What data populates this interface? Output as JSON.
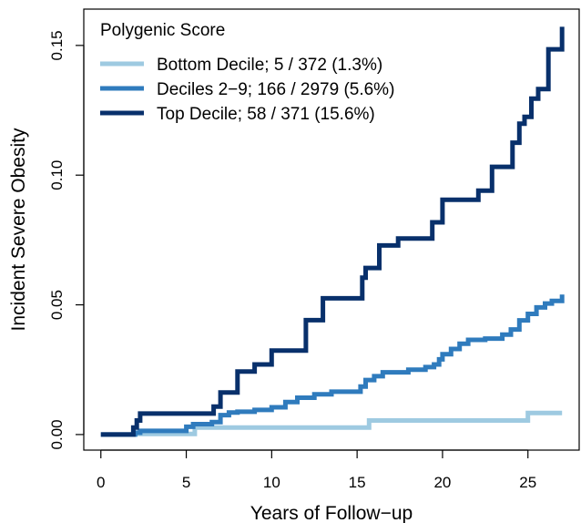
{
  "chart_data": {
    "type": "line",
    "xlabel": "Years of Follow−up",
    "ylabel": "Incident Severe Obesity",
    "xlim": [
      -1,
      28
    ],
    "ylim": [
      -0.006,
      0.164
    ],
    "x_ticks": [
      "0",
      "5",
      "10",
      "15",
      "20",
      "25"
    ],
    "y_ticks": [
      "0.00",
      "0.05",
      "0.10",
      "0.15"
    ],
    "legend": {
      "title": "Polygenic Score",
      "position": "top-left"
    },
    "series": [
      {
        "name": "Bottom Decile; 5 / 372 (1.3%)",
        "color": "#9ecae1",
        "points": [
          [
            0,
            0
          ],
          [
            2.0,
            0
          ],
          [
            2.0,
            0.0002
          ],
          [
            5.5,
            0.0002
          ],
          [
            5.5,
            0.0027
          ],
          [
            15.7,
            0.0027
          ],
          [
            15.7,
            0.0054
          ],
          [
            25.0,
            0.0054
          ],
          [
            25.0,
            0.0083
          ],
          [
            27.0,
            0.0083
          ]
        ]
      },
      {
        "name": "Deciles 2−9; 166 / 2979 (5.6%)",
        "color": "#2f7bbd",
        "points": [
          [
            0,
            0
          ],
          [
            1.9,
            0
          ],
          [
            2.0,
            0.0007
          ],
          [
            2.3,
            0.0014
          ],
          [
            4.6,
            0.0014
          ],
          [
            5.0,
            0.003
          ],
          [
            5.4,
            0.004
          ],
          [
            6.5,
            0.0048
          ],
          [
            7.0,
            0.0075
          ],
          [
            7.5,
            0.0085
          ],
          [
            8.0,
            0.0088
          ],
          [
            9.0,
            0.0095
          ],
          [
            10.0,
            0.0105
          ],
          [
            10.8,
            0.0125
          ],
          [
            11.5,
            0.0142
          ],
          [
            12.5,
            0.0155
          ],
          [
            13.5,
            0.0165
          ],
          [
            15.2,
            0.0185
          ],
          [
            15.5,
            0.021
          ],
          [
            16.0,
            0.0225
          ],
          [
            16.5,
            0.024
          ],
          [
            18.0,
            0.025
          ],
          [
            19.0,
            0.026
          ],
          [
            19.5,
            0.027
          ],
          [
            19.8,
            0.029
          ],
          [
            20.0,
            0.031
          ],
          [
            20.5,
            0.033
          ],
          [
            21.0,
            0.035
          ],
          [
            21.5,
            0.0365
          ],
          [
            22.5,
            0.037
          ],
          [
            23.5,
            0.0385
          ],
          [
            24.0,
            0.0405
          ],
          [
            24.5,
            0.044
          ],
          [
            25.0,
            0.0465
          ],
          [
            25.5,
            0.049
          ],
          [
            26.0,
            0.0505
          ],
          [
            26.4,
            0.0515
          ],
          [
            27.0,
            0.0515
          ],
          [
            27.0,
            0.054
          ]
        ]
      },
      {
        "name": "Top Decile; 58 / 371 (15.6%)",
        "color": "#08306b",
        "points": [
          [
            0,
            0
          ],
          [
            1.9,
            0
          ],
          [
            1.9,
            0.0027
          ],
          [
            2.1,
            0.0054
          ],
          [
            2.3,
            0.0081
          ],
          [
            6.6,
            0.0081
          ],
          [
            6.6,
            0.0108
          ],
          [
            7.0,
            0.0162
          ],
          [
            8.0,
            0.0243
          ],
          [
            9.0,
            0.027
          ],
          [
            10.0,
            0.0324
          ],
          [
            12.0,
            0.0441
          ],
          [
            13.0,
            0.0525
          ],
          [
            15.3,
            0.0605
          ],
          [
            15.5,
            0.0642
          ],
          [
            16.3,
            0.0729
          ],
          [
            17.4,
            0.0756
          ],
          [
            19.4,
            0.0818
          ],
          [
            20.0,
            0.0905
          ],
          [
            22.1,
            0.094
          ],
          [
            22.9,
            0.1032
          ],
          [
            24.1,
            0.1125
          ],
          [
            24.5,
            0.1198
          ],
          [
            24.8,
            0.1225
          ],
          [
            25.2,
            0.1295
          ],
          [
            25.6,
            0.1332
          ],
          [
            26.2,
            0.1485
          ],
          [
            27.0,
            0.1485
          ],
          [
            27.0,
            0.1572
          ]
        ]
      }
    ]
  }
}
